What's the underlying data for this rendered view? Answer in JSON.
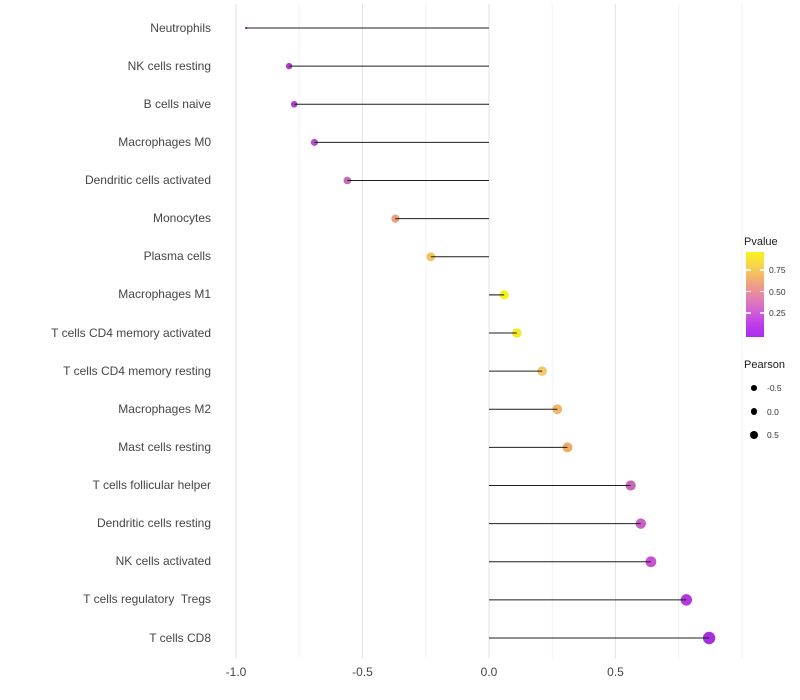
{
  "chart_data": {
    "type": "scatter",
    "subtype": "lollipop",
    "title": "",
    "xlabel": "",
    "ylabel": "",
    "xlim": [
      -1.07,
      1.0
    ],
    "grid": true,
    "legend_position": "right",
    "x_ticks": {
      "labels": [
        "-1.0",
        "-0.5",
        "0.0",
        "0.5"
      ],
      "values": [
        -1.0,
        -0.5,
        0.0,
        0.5
      ]
    },
    "x_minor": [
      -0.75,
      -0.25,
      0.25,
      0.75,
      1.0
    ],
    "points": [
      {
        "label": "Neutrophils",
        "pearson": -0.96,
        "color": "#9232c0",
        "radius": 1.2
      },
      {
        "label": "NK cells resting",
        "pearson": -0.79,
        "color": "#ad3cc8",
        "radius": 3.2
      },
      {
        "label": "B cells naive",
        "pearson": -0.77,
        "color": "#ae40c9",
        "radius": 3.3
      },
      {
        "label": "Macrophages M0",
        "pearson": -0.69,
        "color": "#b54fc9",
        "radius": 3.6
      },
      {
        "label": "Dendritic cells activated",
        "pearson": -0.56,
        "color": "#c669b8",
        "radius": 3.8
      },
      {
        "label": "Monocytes",
        "pearson": -0.37,
        "color": "#eb9d7e",
        "radius": 4.1
      },
      {
        "label": "Plasma cells",
        "pearson": -0.23,
        "color": "#f1c35b",
        "radius": 4.4
      },
      {
        "label": "Macrophages M1",
        "pearson": 0.06,
        "color": "#f5f018",
        "radius": 4.6
      },
      {
        "label": "T cells CD4 memory activated",
        "pearson": 0.11,
        "color": "#f4ea2c",
        "radius": 4.7
      },
      {
        "label": "T cells CD4 memory resting",
        "pearson": 0.21,
        "color": "#f0ca68",
        "radius": 4.8
      },
      {
        "label": "Macrophages M2",
        "pearson": 0.27,
        "color": "#efb768",
        "radius": 4.9
      },
      {
        "label": "Mast cells resting",
        "pearson": 0.31,
        "color": "#eead66",
        "radius": 5.0
      },
      {
        "label": "T cells follicular helper",
        "pearson": 0.56,
        "color": "#ca66b6",
        "radius": 5.1
      },
      {
        "label": "Dendritic cells resting",
        "pearson": 0.6,
        "color": "#ca5fc6",
        "radius": 5.2
      },
      {
        "label": "NK cells activated",
        "pearson": 0.64,
        "color": "#c751d3",
        "radius": 5.4
      },
      {
        "label": "T cells regulatory  Tregs",
        "pearson": 0.78,
        "color": "#b138da",
        "radius": 5.7
      },
      {
        "label": "T cells CD8",
        "pearson": 0.87,
        "color": "#a52edf",
        "radius": 6.2
      }
    ]
  },
  "legend": {
    "pvalue": {
      "title": "Pvalue",
      "tick_labels": [
        "0.75",
        "0.50",
        "0.25"
      ],
      "gradient_top_to_bottom": [
        "#faf21d",
        "#f8d747",
        "#f3b768",
        "#eb9690",
        "#e07cb8",
        "#d05cd8",
        "#bd3ce9",
        "#ad2bf2"
      ]
    },
    "pearson": {
      "title": "Pearson",
      "dot_color": "#000000",
      "items": [
        {
          "label": "-0.5",
          "diameter": 5.6
        },
        {
          "label": "0.0",
          "diameter": 6.9
        },
        {
          "label": "0.5",
          "diameter": 8.2
        }
      ]
    }
  },
  "colors": {
    "stem": "#1f1f1f",
    "grid_major": "#e4e4e4",
    "grid_minor": "#f2f2f2",
    "axis_text": "#454545",
    "background": "#ffffff"
  }
}
